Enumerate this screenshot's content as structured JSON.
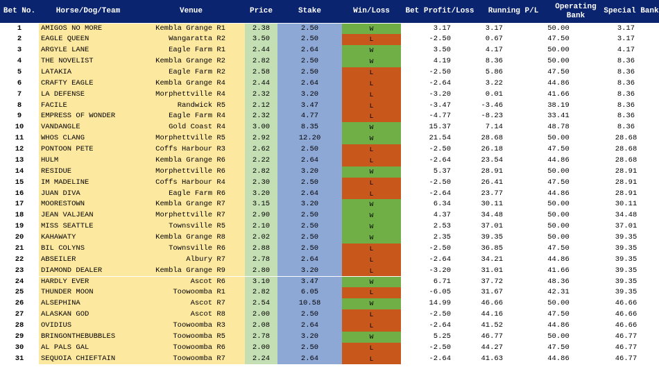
{
  "headers": {
    "bet_no": "Bet No.",
    "horse": "Horse/Dog/Team",
    "venue": "Venue",
    "price": "Price",
    "stake": "Stake",
    "win_loss": "Win/Loss",
    "bet_pl": "Bet Profit/Loss",
    "running_pl": "Running P/L",
    "operating_bank": "Operating Bank",
    "special_bank": "Special Bank"
  },
  "colors": {
    "header_bg": "#0b2470",
    "name_bg": "#fde8a0",
    "price_bg": "#c4dfb4",
    "stake_bg": "#8ea8d6",
    "win_bg": "#6faf46",
    "loss_bg": "#c8571b"
  },
  "rows": [
    {
      "no": "1",
      "horse": "AMIGOS NO MORE",
      "venue": "Kembla Grange R1",
      "price": "2.38",
      "stake": "2.50",
      "wl": "W",
      "bet_pl": "3.17",
      "running_pl": "3.17",
      "op_bank": "50.00",
      "sp_bank": "3.17"
    },
    {
      "no": "2",
      "horse": "EAGLE QUEEN",
      "venue": "Wangaratta R2",
      "price": "3.50",
      "stake": "2.50",
      "wl": "L",
      "bet_pl": "-2.50",
      "running_pl": "0.67",
      "op_bank": "47.50",
      "sp_bank": "3.17"
    },
    {
      "no": "3",
      "horse": "ARGYLE LANE",
      "venue": "Eagle Farm R1",
      "price": "2.44",
      "stake": "2.64",
      "wl": "W",
      "bet_pl": "3.50",
      "running_pl": "4.17",
      "op_bank": "50.00",
      "sp_bank": "4.17"
    },
    {
      "no": "4",
      "horse": "THE NOVELIST",
      "venue": "Kembla Grange R2",
      "price": "2.82",
      "stake": "2.50",
      "wl": "W",
      "bet_pl": "4.19",
      "running_pl": "8.36",
      "op_bank": "50.00",
      "sp_bank": "8.36"
    },
    {
      "no": "5",
      "horse": "LATAKIA",
      "venue": "Eagle Farm R2",
      "price": "2.58",
      "stake": "2.50",
      "wl": "L",
      "bet_pl": "-2.50",
      "running_pl": "5.86",
      "op_bank": "47.50",
      "sp_bank": "8.36"
    },
    {
      "no": "6",
      "horse": "CRAFTY EAGLE",
      "venue": "Kembla Grange R4",
      "price": "2.44",
      "stake": "2.64",
      "wl": "L",
      "bet_pl": "-2.64",
      "running_pl": "3.22",
      "op_bank": "44.86",
      "sp_bank": "8.36"
    },
    {
      "no": "7",
      "horse": "LA DEFENSE",
      "venue": "Morphettville R4",
      "price": "2.32",
      "stake": "3.20",
      "wl": "L",
      "bet_pl": "-3.20",
      "running_pl": "0.01",
      "op_bank": "41.66",
      "sp_bank": "8.36"
    },
    {
      "no": "8",
      "horse": "FACILE",
      "venue": "Randwick R5",
      "price": "2.12",
      "stake": "3.47",
      "wl": "L",
      "bet_pl": "-3.47",
      "running_pl": "-3.46",
      "op_bank": "38.19",
      "sp_bank": "8.36"
    },
    {
      "no": "9",
      "horse": "EMPRESS OF WONDER",
      "venue": "Eagle Farm R4",
      "price": "2.32",
      "stake": "4.77",
      "wl": "L",
      "bet_pl": "-4.77",
      "running_pl": "-8.23",
      "op_bank": "33.41",
      "sp_bank": "8.36"
    },
    {
      "no": "10",
      "horse": "VANDANGLE",
      "venue": "Gold Coast R4",
      "price": "3.00",
      "stake": "8.35",
      "wl": "W",
      "bet_pl": "15.37",
      "running_pl": "7.14",
      "op_bank": "48.78",
      "sp_bank": "8.36"
    },
    {
      "no": "11",
      "horse": "WHOS CLANG",
      "venue": "Morphettville R5",
      "price": "2.92",
      "stake": "12.20",
      "wl": "W",
      "bet_pl": "21.54",
      "running_pl": "28.68",
      "op_bank": "50.00",
      "sp_bank": "28.68"
    },
    {
      "no": "12",
      "horse": "PONTOON PETE",
      "venue": "Coffs Harbour R3",
      "price": "2.62",
      "stake": "2.50",
      "wl": "L",
      "bet_pl": "-2.50",
      "running_pl": "26.18",
      "op_bank": "47.50",
      "sp_bank": "28.68"
    },
    {
      "no": "13",
      "horse": "HULM",
      "venue": "Kembla Grange R6",
      "price": "2.22",
      "stake": "2.64",
      "wl": "L",
      "bet_pl": "-2.64",
      "running_pl": "23.54",
      "op_bank": "44.86",
      "sp_bank": "28.68"
    },
    {
      "no": "14",
      "horse": "RESIDUE",
      "venue": "Morphettville R6",
      "price": "2.82",
      "stake": "3.20",
      "wl": "W",
      "bet_pl": "5.37",
      "running_pl": "28.91",
      "op_bank": "50.00",
      "sp_bank": "28.91"
    },
    {
      "no": "15",
      "horse": "IM MADELINE",
      "venue": "Coffs Harbour R4",
      "price": "2.30",
      "stake": "2.50",
      "wl": "L",
      "bet_pl": "-2.50",
      "running_pl": "26.41",
      "op_bank": "47.50",
      "sp_bank": "28.91"
    },
    {
      "no": "16",
      "horse": "JUAN DIVA",
      "venue": "Eagle Farm R6",
      "price": "3.20",
      "stake": "2.64",
      "wl": "L",
      "bet_pl": "-2.64",
      "running_pl": "23.77",
      "op_bank": "44.86",
      "sp_bank": "28.91"
    },
    {
      "no": "17",
      "horse": "MOORESTOWN",
      "venue": "Kembla Grange R7",
      "price": "3.15",
      "stake": "3.20",
      "wl": "W",
      "bet_pl": "6.34",
      "running_pl": "30.11",
      "op_bank": "50.00",
      "sp_bank": "30.11"
    },
    {
      "no": "18",
      "horse": "JEAN VALJEAN",
      "venue": "Morphettville R7",
      "price": "2.90",
      "stake": "2.50",
      "wl": "W",
      "bet_pl": "4.37",
      "running_pl": "34.48",
      "op_bank": "50.00",
      "sp_bank": "34.48"
    },
    {
      "no": "19",
      "horse": "MISS SEATTLE",
      "venue": "Townsville R5",
      "price": "2.10",
      "stake": "2.50",
      "wl": "W",
      "bet_pl": "2.53",
      "running_pl": "37.01",
      "op_bank": "50.00",
      "sp_bank": "37.01"
    },
    {
      "no": "20",
      "horse": "KAHAWATY",
      "venue": "Kembla Grange R8",
      "price": "2.02",
      "stake": "2.50",
      "wl": "W",
      "bet_pl": "2.35",
      "running_pl": "39.35",
      "op_bank": "50.00",
      "sp_bank": "39.35"
    },
    {
      "no": "21",
      "horse": "BIL COLYNS",
      "venue": "Townsville R6",
      "price": "2.88",
      "stake": "2.50",
      "wl": "L",
      "bet_pl": "-2.50",
      "running_pl": "36.85",
      "op_bank": "47.50",
      "sp_bank": "39.35"
    },
    {
      "no": "22",
      "horse": "ABSEILER",
      "venue": "Albury R7",
      "price": "2.78",
      "stake": "2.64",
      "wl": "L",
      "bet_pl": "-2.64",
      "running_pl": "34.21",
      "op_bank": "44.86",
      "sp_bank": "39.35"
    },
    {
      "no": "23",
      "horse": "DIAMOND DEALER",
      "venue": "Kembla Grange R9",
      "price": "2.80",
      "stake": "3.20",
      "wl": "L",
      "bet_pl": "-3.20",
      "running_pl": "31.01",
      "op_bank": "41.66",
      "sp_bank": "39.35"
    },
    {
      "no": "24",
      "horse": "HARDLY EVER",
      "venue": "Ascot R6",
      "price": "3.10",
      "stake": "3.47",
      "wl": "W",
      "bet_pl": "6.71",
      "running_pl": "37.72",
      "op_bank": "48.36",
      "sp_bank": "39.35"
    },
    {
      "no": "25",
      "horse": "THUNDER MOON",
      "venue": "Toowoomba R1",
      "price": "2.82",
      "stake": "6.05",
      "wl": "L",
      "bet_pl": "-6.05",
      "running_pl": "31.67",
      "op_bank": "42.31",
      "sp_bank": "39.35"
    },
    {
      "no": "26",
      "horse": "ALSEPHINA",
      "venue": "Ascot R7",
      "price": "2.54",
      "stake": "10.58",
      "wl": "W",
      "bet_pl": "14.99",
      "running_pl": "46.66",
      "op_bank": "50.00",
      "sp_bank": "46.66"
    },
    {
      "no": "27",
      "horse": "ALASKAN GOD",
      "venue": "Ascot R8",
      "price": "2.00",
      "stake": "2.50",
      "wl": "L",
      "bet_pl": "-2.50",
      "running_pl": "44.16",
      "op_bank": "47.50",
      "sp_bank": "46.66"
    },
    {
      "no": "28",
      "horse": "OVIDIUS",
      "venue": "Toowoomba R3",
      "price": "2.08",
      "stake": "2.64",
      "wl": "L",
      "bet_pl": "-2.64",
      "running_pl": "41.52",
      "op_bank": "44.86",
      "sp_bank": "46.66"
    },
    {
      "no": "29",
      "horse": "BRINGONTHEBUBBLES",
      "venue": "Toowoomba R5",
      "price": "2.78",
      "stake": "3.20",
      "wl": "W",
      "bet_pl": "5.25",
      "running_pl": "46.77",
      "op_bank": "50.00",
      "sp_bank": "46.77"
    },
    {
      "no": "30",
      "horse": "AL PALS GAL",
      "venue": "Toowoomba R6",
      "price": "2.00",
      "stake": "2.50",
      "wl": "L",
      "bet_pl": "-2.50",
      "running_pl": "44.27",
      "op_bank": "47.50",
      "sp_bank": "46.77"
    },
    {
      "no": "31",
      "horse": "SEQUOIA CHIEFTAIN",
      "venue": "Toowoomba R7",
      "price": "2.24",
      "stake": "2.64",
      "wl": "L",
      "bet_pl": "-2.64",
      "running_pl": "41.63",
      "op_bank": "44.86",
      "sp_bank": "46.77"
    }
  ]
}
